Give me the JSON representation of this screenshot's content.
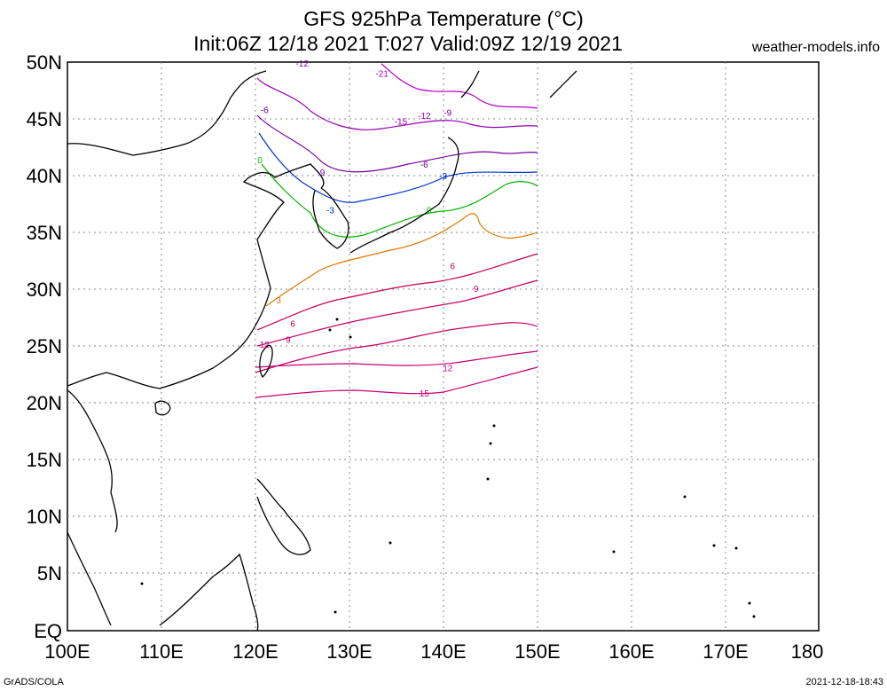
{
  "title": {
    "line1": "GFS 925hPa Temperature (°C)",
    "line2": "Init:06Z 12/18 2021 T:027 Valid:09Z 12/19 2021"
  },
  "site": "weather-models.info",
  "footer": {
    "left": "GrADS/COLA",
    "right": "2021-12-18-18:43"
  },
  "axes": {
    "lat_labels": [
      "50N",
      "45N",
      "40N",
      "35N",
      "30N",
      "25N",
      "20N",
      "15N",
      "10N",
      "5N",
      "EQ"
    ],
    "lon_labels": [
      "100E",
      "110E",
      "120E",
      "130E",
      "140E",
      "150E",
      "160E",
      "170E",
      "180"
    ]
  },
  "contours": [
    {
      "label": "-21",
      "color": "#b400c8",
      "lat": 48.7,
      "lon": 133.5
    },
    {
      "label": "-15",
      "color": "#9600b4",
      "lat": 44.5,
      "lon": 135.5
    },
    {
      "label": "-12",
      "color": "#9600b4",
      "lat": 49.6,
      "lon": 125.0
    },
    {
      "label": "-12",
      "color": "#8c00a8",
      "lat": 45.0,
      "lon": 138.0
    },
    {
      "label": "-9",
      "color": "#7800a0",
      "lat": 40.0,
      "lon": 127.0
    },
    {
      "label": "-9",
      "color": "#7800a0",
      "lat": 45.3,
      "lon": 140.5
    },
    {
      "label": "-6",
      "color": "#64008c",
      "lat": 40.7,
      "lon": 138.0
    },
    {
      "label": "-6",
      "color": "#64008c",
      "lat": 45.5,
      "lon": 121.0
    },
    {
      "label": "-3",
      "color": "#0032c8",
      "lat": 36.7,
      "lon": 128.0
    },
    {
      "label": "-3",
      "color": "#0032c8",
      "lat": 39.7,
      "lon": 140.0
    },
    {
      "label": "0",
      "color": "#00b400",
      "lat": 41.1,
      "lon": 120.5
    },
    {
      "label": "0",
      "color": "#00b400",
      "lat": 36.7,
      "lon": 138.5
    },
    {
      "label": "3",
      "color": "#e07800",
      "lat": 28.8,
      "lon": 122.5
    },
    {
      "label": "6",
      "color": "#c80050",
      "lat": 31.8,
      "lon": 141.0
    },
    {
      "label": "6",
      "color": "#c80050",
      "lat": 26.7,
      "lon": 124.0
    },
    {
      "label": "9",
      "color": "#c80064",
      "lat": 29.8,
      "lon": 143.5
    },
    {
      "label": "9",
      "color": "#c80064",
      "lat": 25.3,
      "lon": 123.5
    },
    {
      "label": "12",
      "color": "#c80078",
      "lat": 24.9,
      "lon": 121.0
    },
    {
      "label": "12",
      "color": "#c80078",
      "lat": 22.8,
      "lon": 140.5
    },
    {
      "label": "15",
      "color": "#c80078",
      "lat": 20.6,
      "lon": 138.0
    }
  ]
}
